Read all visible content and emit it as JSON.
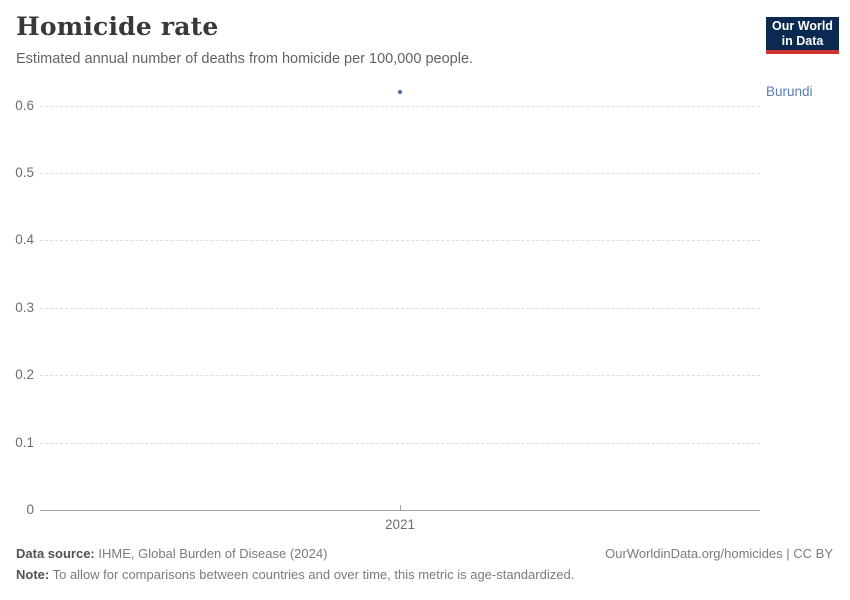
{
  "header": {
    "title": "Homicide rate",
    "subtitle": "Estimated annual number of deaths from homicide per 100,000 people.",
    "logo": {
      "line1": "Our World",
      "line2": "in Data",
      "bg_color": "#0b2a51",
      "accent_color": "#cf342e"
    }
  },
  "chart_data": {
    "type": "scatter",
    "title": "Homicide rate",
    "subtitle": "Estimated annual number of deaths from homicide per 100,000 people.",
    "series": [
      {
        "name": "Burundi",
        "color": "#4c6a9c",
        "points": [
          {
            "x": 2021,
            "y": 0.62
          }
        ]
      }
    ],
    "entity_label": "Burundi",
    "entity_label_color": "#5b7cb0",
    "x_ticks": [
      "2021"
    ],
    "y_ticks": [
      0,
      0.1,
      0.2,
      0.3,
      0.4,
      0.5,
      0.6
    ],
    "ylim": [
      0,
      0.65
    ],
    "xlabel": "",
    "ylabel": "",
    "grid": "horizontal-dashed",
    "legend_position": "right-of-point"
  },
  "footer": {
    "source_label": "Data source:",
    "source_value": " IHME, Global Burden of Disease (2024)",
    "credit": "OurWorldinData.org/homicides | CC BY",
    "note_label": "Note:",
    "note_value": " To allow for comparisons between countries and over time, this metric is age-standardized."
  }
}
